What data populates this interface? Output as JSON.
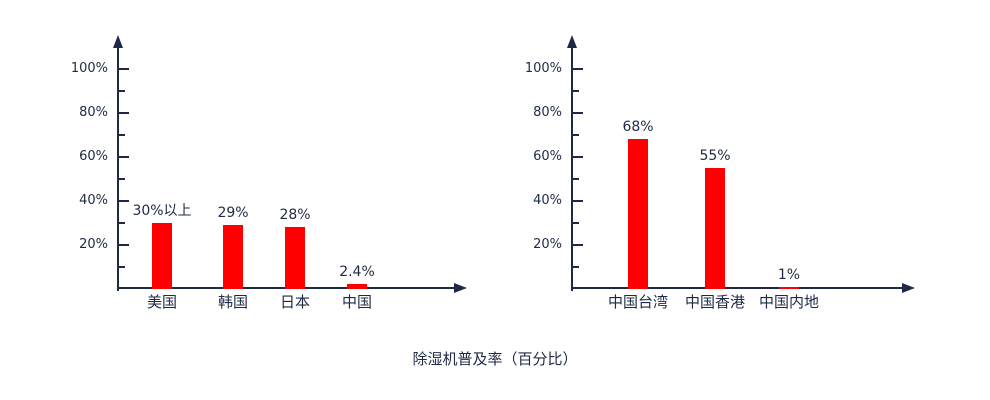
{
  "title": "除湿机普及率（百分比）",
  "colors": {
    "bar": "#ff0000",
    "axis": "#1e2a45",
    "text": "#1e2a45"
  },
  "chart_data": [
    {
      "type": "bar",
      "categories": [
        "美国",
        "韩国",
        "日本",
        "中国"
      ],
      "values": [
        30,
        29,
        28,
        2.4
      ],
      "value_labels": [
        "30%以上",
        "29%",
        "28%",
        "2.4%"
      ],
      "title": "",
      "xlabel": "",
      "ylabel": "",
      "ylim": [
        0,
        110
      ],
      "ytick_labels": [
        "20%",
        "40%",
        "60%",
        "80%",
        "100%"
      ],
      "ytick_values": [
        20,
        40,
        60,
        80,
        100
      ],
      "minor_tick_step": 10,
      "grid": false,
      "legend": false
    },
    {
      "type": "bar",
      "categories": [
        "中国台湾",
        "中国香港",
        "中国内地"
      ],
      "values": [
        68,
        55,
        1
      ],
      "value_labels": [
        "68%",
        "55%",
        "1%"
      ],
      "title": "",
      "xlabel": "",
      "ylabel": "",
      "ylim": [
        0,
        110
      ],
      "ytick_labels": [
        "20%",
        "40%",
        "60%",
        "80%",
        "100%"
      ],
      "ytick_values": [
        20,
        40,
        60,
        80,
        100
      ],
      "minor_tick_step": 10,
      "grid": false,
      "legend": false
    }
  ]
}
